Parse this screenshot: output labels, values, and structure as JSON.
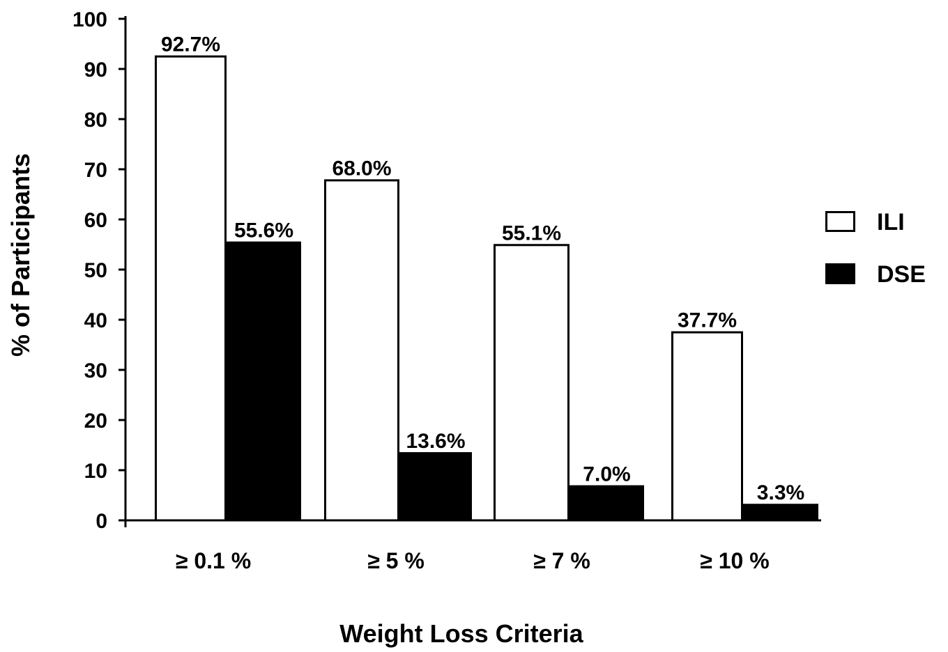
{
  "chart_data": {
    "type": "bar",
    "title": "",
    "xlabel": "Weight Loss Criteria",
    "ylabel": "% of Participants",
    "ylim": [
      0,
      100
    ],
    "yticks": [
      "0",
      "10",
      "20",
      "30",
      "40",
      "50",
      "60",
      "70",
      "80",
      "90",
      "100"
    ],
    "categories": [
      "≥ 0.1 %",
      "≥ 5 %",
      "≥ 7 %",
      "≥ 10 %"
    ],
    "series": [
      {
        "name": "ILI",
        "fill": "#ffffff",
        "values": [
          92.7,
          68.0,
          55.1,
          37.7
        ],
        "labels": [
          "92.7%",
          "68.0%",
          "55.1%",
          "37.7%"
        ]
      },
      {
        "name": "DSE",
        "fill": "#000000",
        "values": [
          55.6,
          13.6,
          7.0,
          3.3
        ],
        "labels": [
          "55.6%",
          "13.6%",
          "7.0%",
          "3.3%"
        ]
      }
    ],
    "legend": "right",
    "grid": false
  }
}
